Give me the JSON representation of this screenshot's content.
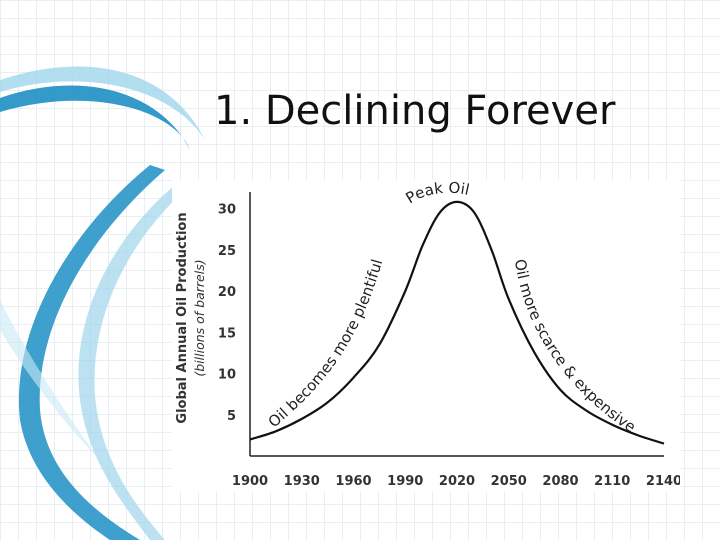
{
  "slide": {
    "title": "1. Declining Forever"
  },
  "colors": {
    "swoosh_dark": "#1d8fc4",
    "swoosh_light": "#9fd6ec",
    "curve": "#111111"
  },
  "chart_data": {
    "type": "line",
    "title": "",
    "ylabel": "Global Annual Oil Production",
    "ylabel_units": "(billions of barrels)",
    "xlabel": "",
    "x_ticks": [
      "1900",
      "1930",
      "1960",
      "1990",
      "2020",
      "2050",
      "2080",
      "2110",
      "2140"
    ],
    "y_ticks": [
      "5",
      "10",
      "15",
      "20",
      "25",
      "30"
    ],
    "xlim": [
      1900,
      2140
    ],
    "ylim": [
      0,
      32
    ],
    "series": [
      {
        "x": [
          1900,
          1915,
          1930,
          1945,
          1960,
          1975,
          1990,
          2000,
          2010,
          2020,
          2030,
          2040,
          2050,
          2065,
          2080,
          2095,
          2110,
          2125,
          2140
        ],
        "y": [
          2.0,
          3.0,
          4.5,
          6.5,
          9.5,
          13.5,
          20.0,
          25.5,
          29.5,
          30.8,
          29.5,
          25.0,
          19.0,
          12.5,
          8.0,
          5.5,
          3.8,
          2.5,
          1.5
        ]
      }
    ],
    "annotations": {
      "peak": "Peak Oil",
      "rising": "Oil becomes more plentiful",
      "falling": "Oil more scarce & expensive"
    }
  }
}
